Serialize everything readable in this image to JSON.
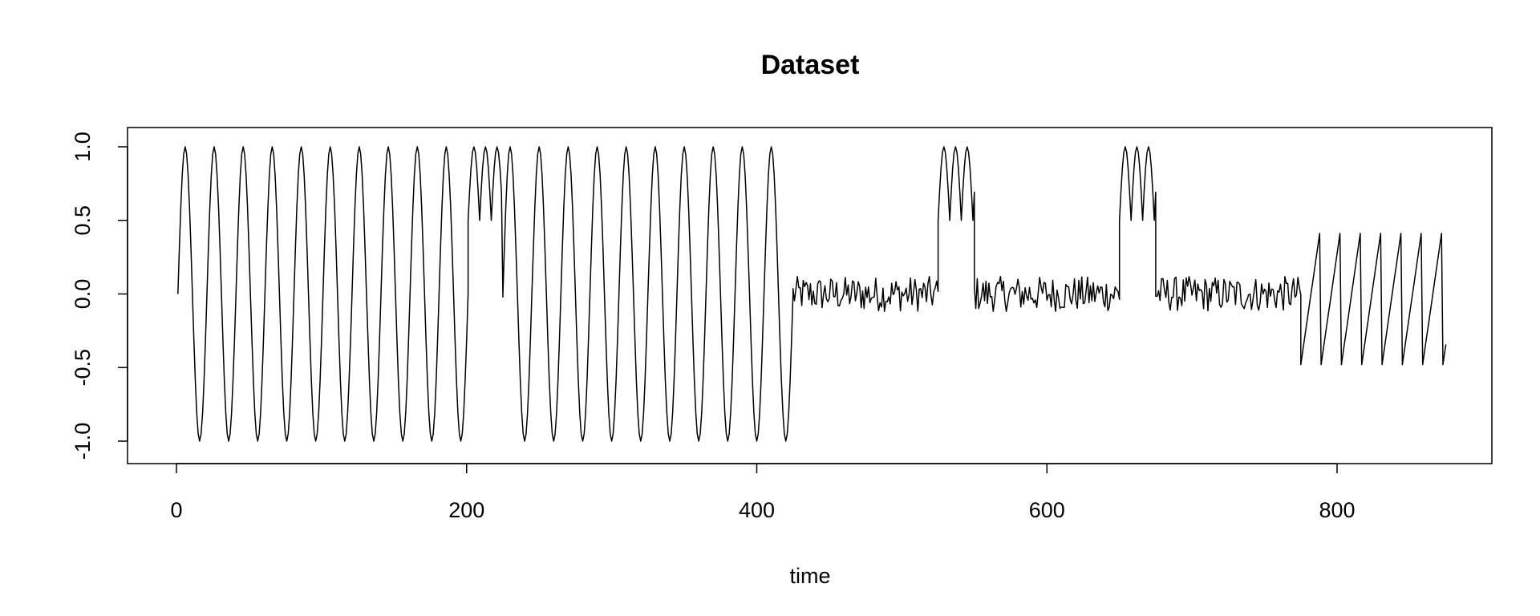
{
  "chart_data": {
    "type": "line",
    "title": "Dataset",
    "xlabel": "time",
    "ylabel": "",
    "xlim": [
      0,
      880
    ],
    "ylim": [
      -1.0,
      1.0
    ],
    "x_ticks": [
      0,
      200,
      400,
      600,
      800
    ],
    "x_tick_labels": [
      "0",
      "200",
      "400",
      "600",
      "800"
    ],
    "y_ticks": [
      -1.0,
      -0.5,
      0.0,
      0.5,
      1.0
    ],
    "y_tick_labels": [
      "-1.0",
      "-0.5",
      "0.0",
      "0.5",
      "1.0"
    ],
    "grid": false,
    "legend": "none",
    "series": [
      {
        "segments": [
          {
            "kind": "sine",
            "x_start": 1,
            "x_end": 201,
            "period": 20,
            "amplitude": 1.0
          },
          {
            "kind": "bumps",
            "x_start": 201,
            "x_end": 224,
            "level": 0.5,
            "amplitude": 0.5,
            "period": 8
          },
          {
            "kind": "point",
            "x": 225,
            "y": -0.02
          },
          {
            "kind": "sine",
            "x_start": 225,
            "x_end": 425,
            "period": 20,
            "amplitude": 1.0
          },
          {
            "kind": "noise",
            "x_start": 425,
            "x_end": 525,
            "level": 0.0,
            "amplitude": 0.12
          },
          {
            "kind": "bumps",
            "x_start": 525,
            "x_end": 550,
            "level": 0.5,
            "amplitude": 0.5,
            "period": 8
          },
          {
            "kind": "noise",
            "x_start": 550,
            "x_end": 650,
            "level": 0.0,
            "amplitude": 0.12
          },
          {
            "kind": "bumps",
            "x_start": 650,
            "x_end": 675,
            "level": 0.5,
            "amplitude": 0.5,
            "period": 8
          },
          {
            "kind": "noise",
            "x_start": 675,
            "x_end": 775,
            "level": 0.0,
            "amplitude": 0.12
          },
          {
            "kind": "sawtooth",
            "x_start": 775,
            "x_end": 875,
            "period": 14,
            "min": -0.48,
            "max": 0.48
          }
        ]
      }
    ]
  }
}
